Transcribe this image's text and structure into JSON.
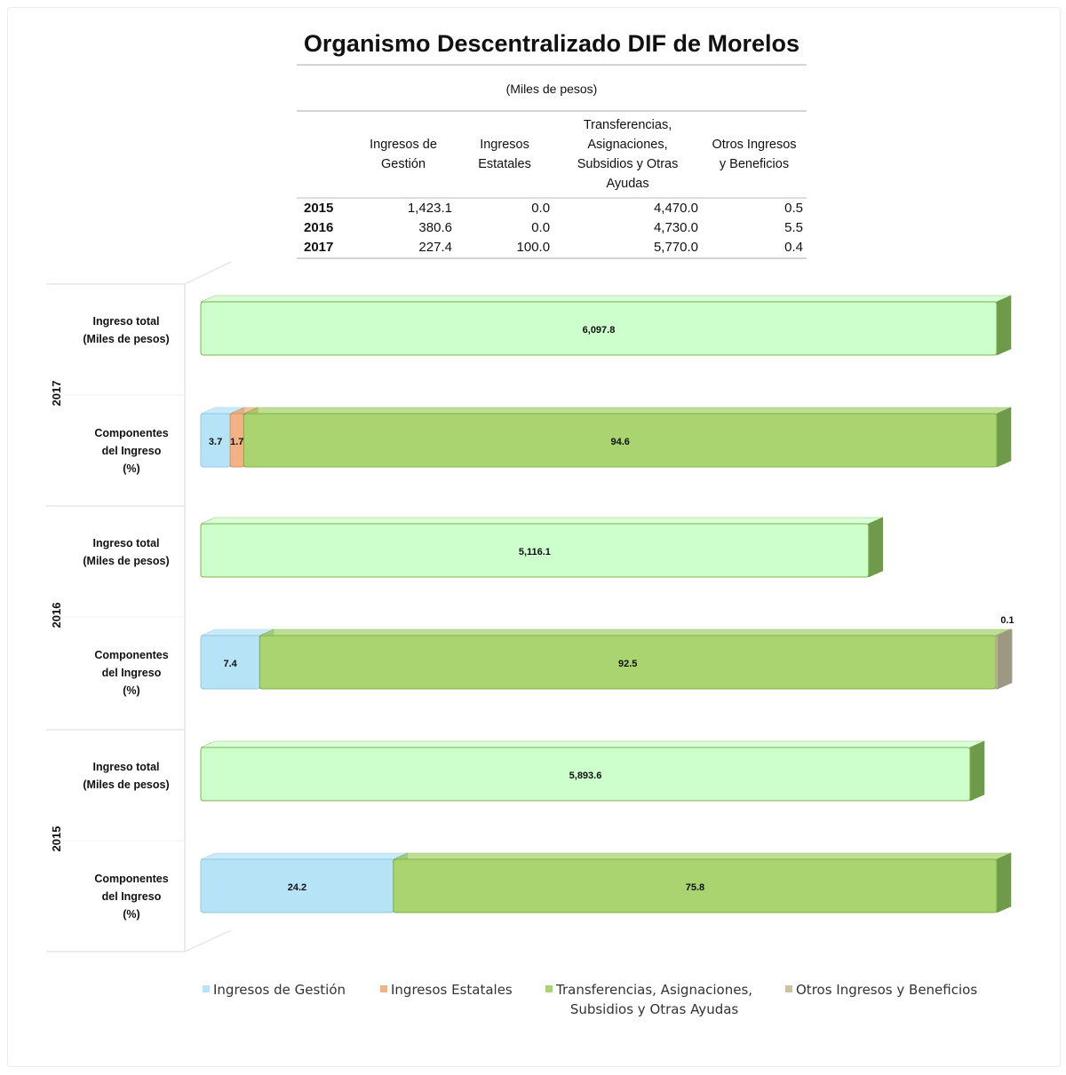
{
  "title": "Organismo Descentralizado DIF de Morelos",
  "table": {
    "units": "(Miles de pesos)",
    "headers": [
      "",
      "Ingresos de\nGestión",
      "Ingresos\nEstatales",
      "Transferencias,\nAsignaciones,\nSubsidios y Otras\nAyudas",
      "Otros Ingresos\ny Beneficios"
    ],
    "rows": [
      [
        "2015",
        "1,423.1",
        "0.0",
        "4,470.0",
        "0.5"
      ],
      [
        "2016",
        "380.6",
        "0.0",
        "4,730.0",
        "5.5"
      ],
      [
        "2017",
        "227.4",
        "100.0",
        "5,770.0",
        "0.4"
      ]
    ]
  },
  "chart_data": {
    "type": "bar",
    "orientation": "horizontal",
    "stacked": true,
    "groups": [
      {
        "year": "2017",
        "total_label": "Ingreso total\n(Miles de pesos)",
        "total_value": 6097.8,
        "total_text": "6,097.8",
        "components_label": "Componentes\ndel Ingreso\n(%)",
        "components": [
          {
            "series": "Ingresos de Gestión",
            "value": 3.7,
            "text": "3.7"
          },
          {
            "series": "Ingresos Estatales",
            "value": 1.7,
            "text": "1.7"
          },
          {
            "series": "Transferencias, Asignaciones, Subsidios y Otras Ayudas",
            "value": 94.6,
            "text": "94.6"
          },
          {
            "series": "Otros Ingresos y Beneficios",
            "value": 0.0,
            "text": ""
          }
        ]
      },
      {
        "year": "2016",
        "total_label": "Ingreso total\n(Miles de pesos)",
        "total_value": 5116.1,
        "total_text": "5,116.1",
        "components_label": "Componentes\ndel Ingreso\n(%)",
        "components": [
          {
            "series": "Ingresos de Gestión",
            "value": 7.4,
            "text": "7.4"
          },
          {
            "series": "Ingresos Estatales",
            "value": 0.0,
            "text": ""
          },
          {
            "series": "Transferencias, Asignaciones, Subsidios y Otras Ayudas",
            "value": 92.5,
            "text": "92.5"
          },
          {
            "series": "Otros Ingresos y Beneficios",
            "value": 0.1,
            "text": "0.1"
          }
        ]
      },
      {
        "year": "2015",
        "total_label": "Ingreso total\n(Miles de pesos)",
        "total_value": 5893.6,
        "total_text": "5,893.6",
        "components_label": "Componentes\ndel Ingreso\n(%)",
        "components": [
          {
            "series": "Ingresos de Gestión",
            "value": 24.2,
            "text": "24.2"
          },
          {
            "series": "Ingresos Estatales",
            "value": 0.0,
            "text": ""
          },
          {
            "series": "Transferencias, Asignaciones, Subsidios y Otras Ayudas",
            "value": 75.8,
            "text": "75.8"
          },
          {
            "series": "Otros Ingresos y Beneficios",
            "value": 0.0,
            "text": ""
          }
        ]
      }
    ],
    "legend": [
      {
        "name": "Ingresos de Gestión",
        "color": "#b7e3f7"
      },
      {
        "name": "Ingresos Estatales",
        "color": "#f4b183"
      },
      {
        "name": "Transferencias, Asignaciones,\nSubsidios y Otras Ayudas",
        "color": "#a9d46f"
      },
      {
        "name": "Otros Ingresos y Beneficios",
        "color": "#c8c3a6"
      }
    ],
    "legend_position": "bottom",
    "total_color": "#ccffcc",
    "xlim": [
      0,
      100
    ],
    "grid": false
  }
}
